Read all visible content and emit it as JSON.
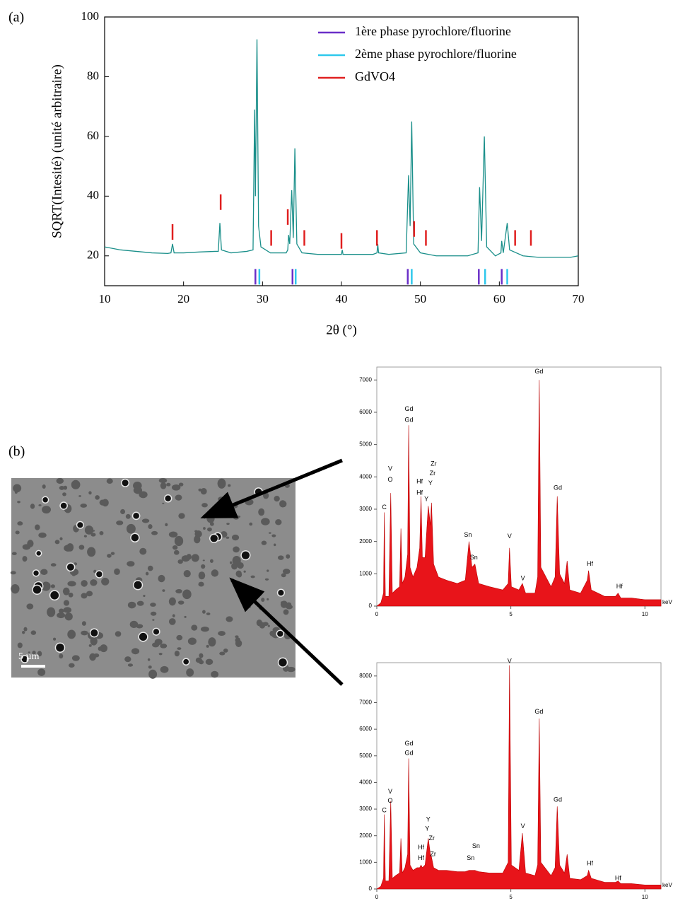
{
  "panel_labels": [
    "(a)",
    "(b)"
  ],
  "scale_bar": "5 µm",
  "chart_data": [
    {
      "type": "line",
      "xlabel": "2θ (°)",
      "ylabel": "SQRT(Intesité) (unité arbitraire)",
      "xlim": [
        10,
        70
      ],
      "ylim": [
        10,
        100
      ],
      "xticks": [
        10,
        20,
        30,
        40,
        50,
        60,
        70
      ],
      "yticks": [
        20,
        40,
        60,
        80,
        100
      ],
      "x": [
        10,
        12,
        14,
        16,
        18,
        18.4,
        18.6,
        18.8,
        20,
        22,
        24,
        24.4,
        24.6,
        24.8,
        26,
        28,
        28.8,
        29.0,
        29.1,
        29.3,
        29.5,
        29.8,
        31,
        33,
        33.2,
        33.3,
        33.45,
        33.7,
        33.9,
        34.1,
        34.35,
        35,
        37,
        40,
        40.1,
        40.2,
        42,
        44,
        44.5,
        44.6,
        44.7,
        46,
        48.2,
        48.5,
        48.7,
        48.9,
        49.15,
        50,
        52,
        54,
        56,
        57.3,
        57.5,
        57.75,
        58.1,
        58.4,
        59.5,
        60.2,
        60.3,
        60.5,
        61.0,
        61.3,
        63,
        65,
        67,
        69,
        70
      ],
      "series": [
        {
          "color": "#1a8f8a",
          "values": [
            23,
            22,
            21.5,
            21,
            20.8,
            21,
            24,
            21,
            21,
            21.3,
            21.5,
            21.5,
            31,
            22,
            21,
            21.5,
            22,
            69,
            40,
            92.5,
            30,
            23,
            21,
            21,
            22,
            27,
            24,
            42,
            26,
            56,
            24,
            21,
            20.5,
            20.5,
            22,
            20.5,
            20.5,
            20.5,
            21,
            24,
            21,
            20.5,
            21,
            47,
            30,
            65,
            24,
            21,
            20,
            20,
            20,
            21,
            43,
            25,
            60,
            23,
            20,
            21,
            25,
            21,
            31,
            22,
            20,
            19.5,
            19.5,
            19.5,
            20
          ]
        }
      ],
      "legend": "upper right",
      "reference_series": [
        {
          "name": "1ère phase pyrochlore/fluorine",
          "color": "#6a2fc8",
          "x": [
            29.1,
            33.8,
            48.4,
            57.4,
            60.3
          ],
          "y": [
            13,
            13,
            13,
            13,
            13
          ]
        },
        {
          "name": "2ème phase pyrochlore/fluorine",
          "color": "#2ec8ec",
          "x": [
            29.6,
            34.2,
            48.9,
            58.2,
            61.0
          ],
          "y": [
            13,
            13,
            13,
            13,
            13
          ]
        },
        {
          "name": "GdVO4",
          "color": "#e02020",
          "x": [
            18.6,
            24.7,
            31.1,
            33.2,
            35.3,
            40.0,
            44.5,
            49.2,
            50.7,
            62.0,
            64.0
          ],
          "y": [
            28,
            38,
            26,
            33,
            26,
            25,
            26,
            29,
            26,
            26,
            26
          ]
        }
      ]
    },
    {
      "type": "area",
      "xunit": "keV",
      "xlim": [
        0,
        10.6
      ],
      "ylim": [
        0,
        7400
      ],
      "xticks": [
        0,
        5,
        10
      ],
      "yticks": [
        0,
        1000,
        2000,
        3000,
        4000,
        5000,
        6000,
        7000
      ],
      "x": [
        0,
        0.15,
        0.25,
        0.28,
        0.32,
        0.45,
        0.52,
        0.58,
        0.7,
        0.85,
        0.9,
        0.95,
        1.05,
        1.15,
        1.19,
        1.24,
        1.35,
        1.5,
        1.6,
        1.65,
        1.7,
        1.8,
        1.92,
        2.0,
        2.04,
        2.12,
        2.3,
        2.6,
        3.0,
        3.3,
        3.44,
        3.55,
        3.66,
        3.8,
        4.2,
        4.7,
        4.9,
        4.95,
        5.02,
        5.3,
        5.43,
        5.55,
        5.9,
        6.0,
        6.06,
        6.12,
        6.5,
        6.65,
        6.73,
        6.82,
        7.0,
        7.1,
        7.2,
        7.6,
        7.85,
        7.9,
        8.0,
        8.5,
        8.9,
        9.0,
        9.1,
        9.5,
        10,
        10.6
      ],
      "series": [
        {
          "color": "#e8141a",
          "values": [
            0,
            100,
            400,
            2900,
            300,
            300,
            3500,
            400,
            500,
            600,
            2400,
            700,
            900,
            1600,
            5600,
            1200,
            900,
            1200,
            1800,
            3400,
            1500,
            1500,
            3100,
            2500,
            3200,
            1300,
            900,
            800,
            700,
            800,
            2000,
            1200,
            1300,
            700,
            600,
            500,
            700,
            1800,
            600,
            500,
            700,
            400,
            400,
            900,
            7000,
            1200,
            600,
            900,
            3400,
            1000,
            700,
            1400,
            500,
            400,
            800,
            1100,
            500,
            300,
            300,
            400,
            250,
            250,
            200,
            200
          ]
        }
      ],
      "annotations": [
        {
          "text": "C",
          "x": 0.28,
          "y": 3050
        },
        {
          "text": "V",
          "x": 0.5,
          "y": 4250
        },
        {
          "text": "O",
          "x": 0.5,
          "y": 3900
        },
        {
          "text": "Gd",
          "x": 1.2,
          "y": 6100
        },
        {
          "text": "Gd",
          "x": 1.2,
          "y": 5750
        },
        {
          "text": "Hf",
          "x": 1.6,
          "y": 3850
        },
        {
          "text": "Hf",
          "x": 1.6,
          "y": 3500
        },
        {
          "text": "Zr",
          "x": 2.12,
          "y": 4400
        },
        {
          "text": "Zr",
          "x": 2.08,
          "y": 4100
        },
        {
          "text": "Y",
          "x": 2.0,
          "y": 3800
        },
        {
          "text": "Y",
          "x": 1.85,
          "y": 3300
        },
        {
          "text": "Sn",
          "x": 3.4,
          "y": 2200
        },
        {
          "text": "Sn",
          "x": 3.62,
          "y": 1500
        },
        {
          "text": "V",
          "x": 4.95,
          "y": 2150
        },
        {
          "text": "V",
          "x": 5.45,
          "y": 850
        },
        {
          "text": "Gd",
          "x": 6.05,
          "y": 7250
        },
        {
          "text": "Gd",
          "x": 6.75,
          "y": 3650
        },
        {
          "text": "Hf",
          "x": 7.95,
          "y": 1300
        },
        {
          "text": "Hf",
          "x": 9.05,
          "y": 600
        }
      ]
    },
    {
      "type": "area",
      "xunit": "keV",
      "xlim": [
        0,
        10.6
      ],
      "ylim": [
        0,
        8500
      ],
      "xticks": [
        0,
        5,
        10
      ],
      "yticks": [
        0,
        1000,
        2000,
        3000,
        4000,
        5000,
        6000,
        7000,
        8000
      ],
      "x": [
        0,
        0.15,
        0.25,
        0.28,
        0.32,
        0.45,
        0.52,
        0.58,
        0.7,
        0.85,
        0.9,
        0.95,
        1.05,
        1.15,
        1.19,
        1.24,
        1.35,
        1.5,
        1.6,
        1.65,
        1.7,
        1.8,
        1.92,
        2.0,
        2.04,
        2.12,
        2.3,
        2.6,
        3.0,
        3.3,
        3.44,
        3.55,
        3.66,
        3.8,
        4.2,
        4.7,
        4.9,
        4.95,
        5.02,
        5.3,
        5.43,
        5.55,
        5.9,
        6.0,
        6.06,
        6.12,
        6.5,
        6.65,
        6.73,
        6.82,
        7.0,
        7.1,
        7.2,
        7.6,
        7.85,
        7.9,
        8.0,
        8.5,
        8.9,
        9.0,
        9.1,
        9.5,
        10,
        10.6
      ],
      "series": [
        {
          "color": "#e8141a",
          "values": [
            0,
            100,
            400,
            2800,
            300,
            300,
            3300,
            400,
            500,
            600,
            1900,
            600,
            800,
            1300,
            4900,
            900,
            700,
            800,
            800,
            900,
            800,
            900,
            1900,
            1300,
            1200,
            800,
            700,
            700,
            650,
            650,
            700,
            700,
            700,
            650,
            600,
            600,
            1000,
            8400,
            900,
            700,
            2100,
            600,
            500,
            900,
            6400,
            1000,
            500,
            800,
            3100,
            900,
            600,
            1300,
            400,
            350,
            500,
            700,
            400,
            250,
            250,
            300,
            200,
            200,
            150,
            150
          ]
        }
      ],
      "annotations": [
        {
          "text": "C",
          "x": 0.28,
          "y": 2950
        },
        {
          "text": "V",
          "x": 0.5,
          "y": 3650
        },
        {
          "text": "O",
          "x": 0.5,
          "y": 3300
        },
        {
          "text": "Gd",
          "x": 1.2,
          "y": 5450
        },
        {
          "text": "Gd",
          "x": 1.2,
          "y": 5100
        },
        {
          "text": "Y",
          "x": 1.92,
          "y": 2600
        },
        {
          "text": "Y",
          "x": 1.88,
          "y": 2250
        },
        {
          "text": "Zr",
          "x": 2.05,
          "y": 1900
        },
        {
          "text": "Zr",
          "x": 2.1,
          "y": 1300
        },
        {
          "text": "Hf",
          "x": 1.65,
          "y": 1550
        },
        {
          "text": "Hf",
          "x": 1.65,
          "y": 1150
        },
        {
          "text": "Sn",
          "x": 3.7,
          "y": 1600
        },
        {
          "text": "Sn",
          "x": 3.5,
          "y": 1150
        },
        {
          "text": "V",
          "x": 4.95,
          "y": 8550
        },
        {
          "text": "V",
          "x": 5.45,
          "y": 2350
        },
        {
          "text": "Gd",
          "x": 6.05,
          "y": 6650
        },
        {
          "text": "Gd",
          "x": 6.75,
          "y": 3350
        },
        {
          "text": "Hf",
          "x": 7.95,
          "y": 950
        },
        {
          "text": "Hf",
          "x": 9.0,
          "y": 400
        }
      ]
    }
  ]
}
